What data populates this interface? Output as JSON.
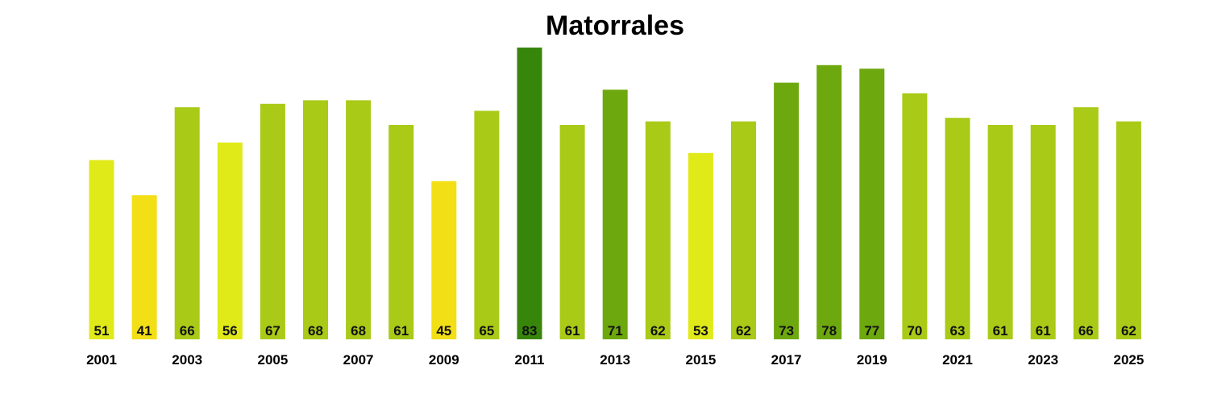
{
  "chart_data": {
    "type": "bar",
    "title": "Matorrales",
    "xlabel": "",
    "ylabel": "",
    "categories": [
      "2001",
      "2002",
      "2003",
      "2004",
      "2005",
      "2006",
      "2007",
      "2008",
      "2009",
      "2010",
      "2011",
      "2012",
      "2013",
      "2014",
      "2015",
      "2016",
      "2017",
      "2018",
      "2019",
      "2020",
      "2021",
      "2022",
      "2023",
      "2024",
      "2025"
    ],
    "values": [
      51,
      41,
      66,
      56,
      67,
      68,
      68,
      61,
      45,
      65,
      83,
      61,
      71,
      62,
      53,
      62,
      73,
      78,
      77,
      70,
      63,
      61,
      61,
      66,
      62
    ],
    "tick_labels": [
      "2001",
      "2003",
      "2005",
      "2007",
      "2009",
      "2011",
      "2013",
      "2015",
      "2017",
      "2019",
      "2021",
      "2023",
      "2025"
    ],
    "ylim": [
      0,
      83
    ],
    "grid": false,
    "legend": "none",
    "data_labels": true,
    "colors": {
      "low": "#f2df16",
      "mid_low": "#e0ea19",
      "mid": "#a9ca17",
      "mid_high": "#6ea80f",
      "high": "#38850b"
    }
  }
}
